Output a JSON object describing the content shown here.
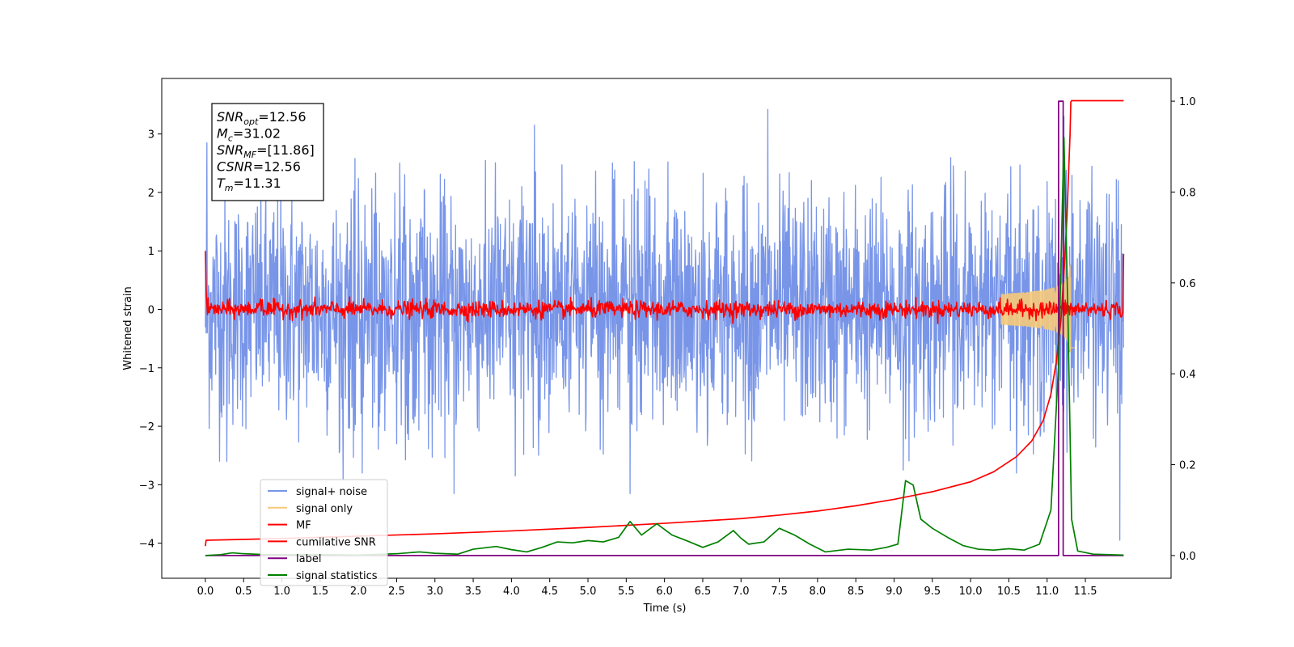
{
  "chart_data": {
    "type": "line",
    "title": "",
    "xlabel": "Time (s)",
    "ylabel": "Whitened strain",
    "y2label": "",
    "xlim": [
      -0.57,
      12.62
    ],
    "ylim": [
      -4.6,
      3.95
    ],
    "y2lim": [
      -0.05,
      1.05
    ],
    "x_ticks": [
      0.0,
      0.5,
      1.0,
      1.5,
      2.0,
      2.5,
      3.0,
      3.5,
      4.0,
      4.5,
      5.0,
      5.5,
      6.0,
      6.5,
      7.0,
      7.5,
      8.0,
      8.5,
      9.0,
      9.5,
      10.0,
      10.5,
      11.0,
      11.5
    ],
    "x_tick_labels": [
      "0.0",
      "0.5",
      "1.0",
      "1.5",
      "2.0",
      "2.5",
      "3.0",
      "3.5",
      "4.0",
      "4.5",
      "5.0",
      "5.5",
      "6.0",
      "6.5",
      "7.0",
      "7.5",
      "8.0",
      "8.5",
      "9.0",
      "9.5",
      "10.0",
      "10.5",
      "11.0",
      "11.5"
    ],
    "y_ticks": [
      -4,
      -3,
      -2,
      -1,
      0,
      1,
      2,
      3
    ],
    "y_tick_labels": [
      "−4",
      "−3",
      "−2",
      "−1",
      "0",
      "1",
      "2",
      "3"
    ],
    "y2_ticks": [
      0.0,
      0.2,
      0.4,
      0.6,
      0.8,
      1.0
    ],
    "y2_tick_labels": [
      "0.0",
      "0.2",
      "0.4",
      "0.6",
      "0.8",
      "1.0"
    ],
    "grid": false,
    "legend_placement": "lower-left",
    "annotation": {
      "lines": [
        {
          "base": "SNR",
          "sub": "opt",
          "rest": "=12.56"
        },
        {
          "base": "M",
          "sub": "c",
          "rest": "=31.02"
        },
        {
          "base": "SNR",
          "sub": "MF",
          "rest": "=[11.86]"
        },
        {
          "base": "CSNR",
          "sub": "",
          "rest": "=12.56"
        },
        {
          "base": "T",
          "sub": "m",
          "rest": "=11.31"
        }
      ]
    },
    "series": [
      {
        "name": "signal+ noise",
        "axis": "left",
        "color": "#7895e8",
        "kind": "noise",
        "x_range": [
          0.0,
          12.0
        ],
        "typical_amplitude": 1.1,
        "peaks": [
          [
            0.02,
            2.85
          ],
          [
            0.28,
            -2.6
          ],
          [
            1.8,
            -2.9
          ],
          [
            2.05,
            -2.8
          ],
          [
            2.5,
            -2.3
          ],
          [
            3.25,
            -3.15
          ],
          [
            4.05,
            -2.85
          ],
          [
            4.3,
            3.15
          ],
          [
            5.55,
            -3.15
          ],
          [
            7.35,
            3.42
          ],
          [
            9.12,
            -2.75
          ],
          [
            10.6,
            -2.8
          ],
          [
            11.95,
            -3.95
          ],
          [
            11.93,
            2.2
          ],
          [
            11.22,
            3.3
          ]
        ]
      },
      {
        "name": "signal only",
        "axis": "left",
        "color": "#f5c97a",
        "kind": "chirp",
        "x_range": [
          0.0,
          12.0
        ],
        "merger_time": 11.31,
        "peak_amplitude": 0.75
      },
      {
        "name": "MF",
        "axis": "left",
        "color": "#ff0000",
        "kind": "mf",
        "x_range": [
          0.0,
          12.0
        ],
        "noise_amplitude": 0.09,
        "points": [
          [
            0.0,
            1.0
          ],
          [
            0.02,
            -0.05
          ],
          [
            0.7,
            0.25
          ],
          [
            11.3,
            0.1
          ],
          [
            11.99,
            -0.05
          ],
          [
            12.0,
            0.95
          ]
        ]
      },
      {
        "name": "cumilative SNR",
        "axis": "left",
        "color": "#ff0000",
        "kind": "line",
        "x": [
          0.0,
          0.01,
          1.0,
          2.0,
          3.0,
          4.0,
          5.0,
          6.0,
          7.0,
          7.5,
          8.0,
          8.5,
          9.0,
          9.5,
          10.0,
          10.3,
          10.6,
          10.8,
          10.95,
          11.05,
          11.12,
          11.18,
          11.22,
          11.26,
          11.28,
          11.3,
          11.31,
          11.32,
          11.5,
          12.0
        ],
        "y": [
          -4.05,
          -3.95,
          -3.92,
          -3.88,
          -3.84,
          -3.79,
          -3.73,
          -3.66,
          -3.58,
          -3.52,
          -3.45,
          -3.36,
          -3.25,
          -3.12,
          -2.95,
          -2.78,
          -2.52,
          -2.25,
          -1.9,
          -1.45,
          -0.9,
          -0.2,
          0.6,
          1.6,
          2.3,
          3.0,
          3.55,
          3.57,
          3.57,
          3.57
        ]
      },
      {
        "name": "label",
        "axis": "right",
        "color": "#800080",
        "kind": "line",
        "x": [
          0.0,
          11.15,
          11.15,
          11.21,
          11.21,
          11.3,
          11.3,
          12.0
        ],
        "y": [
          0.0,
          0.0,
          1.0,
          1.0,
          0.0,
          0.0,
          0.0,
          0.0
        ]
      },
      {
        "name": "signal statistics",
        "axis": "right",
        "color": "#008000",
        "kind": "line",
        "x": [
          0.0,
          0.2,
          0.35,
          0.5,
          0.8,
          1.0,
          1.5,
          2.0,
          2.5,
          2.8,
          3.0,
          3.3,
          3.5,
          3.8,
          4.0,
          4.2,
          4.4,
          4.6,
          4.8,
          5.0,
          5.2,
          5.4,
          5.55,
          5.7,
          5.9,
          6.1,
          6.3,
          6.5,
          6.7,
          6.9,
          7.0,
          7.1,
          7.3,
          7.5,
          7.7,
          7.9,
          8.1,
          8.4,
          8.7,
          8.9,
          9.05,
          9.15,
          9.25,
          9.35,
          9.5,
          9.7,
          9.9,
          10.1,
          10.3,
          10.5,
          10.7,
          10.9,
          11.05,
          11.15,
          11.22,
          11.27,
          11.32,
          11.4,
          11.6,
          12.0
        ],
        "y": [
          0.0,
          0.002,
          0.006,
          0.004,
          0.002,
          0.002,
          0.002,
          0.001,
          0.004,
          0.008,
          0.005,
          0.003,
          0.014,
          0.02,
          0.013,
          0.008,
          0.018,
          0.03,
          0.028,
          0.033,
          0.03,
          0.04,
          0.075,
          0.045,
          0.07,
          0.045,
          0.032,
          0.018,
          0.03,
          0.055,
          0.038,
          0.025,
          0.03,
          0.06,
          0.045,
          0.025,
          0.008,
          0.014,
          0.012,
          0.018,
          0.025,
          0.165,
          0.155,
          0.08,
          0.06,
          0.04,
          0.022,
          0.014,
          0.012,
          0.015,
          0.012,
          0.025,
          0.1,
          0.42,
          0.92,
          0.55,
          0.08,
          0.01,
          0.003,
          0.001
        ]
      }
    ]
  }
}
